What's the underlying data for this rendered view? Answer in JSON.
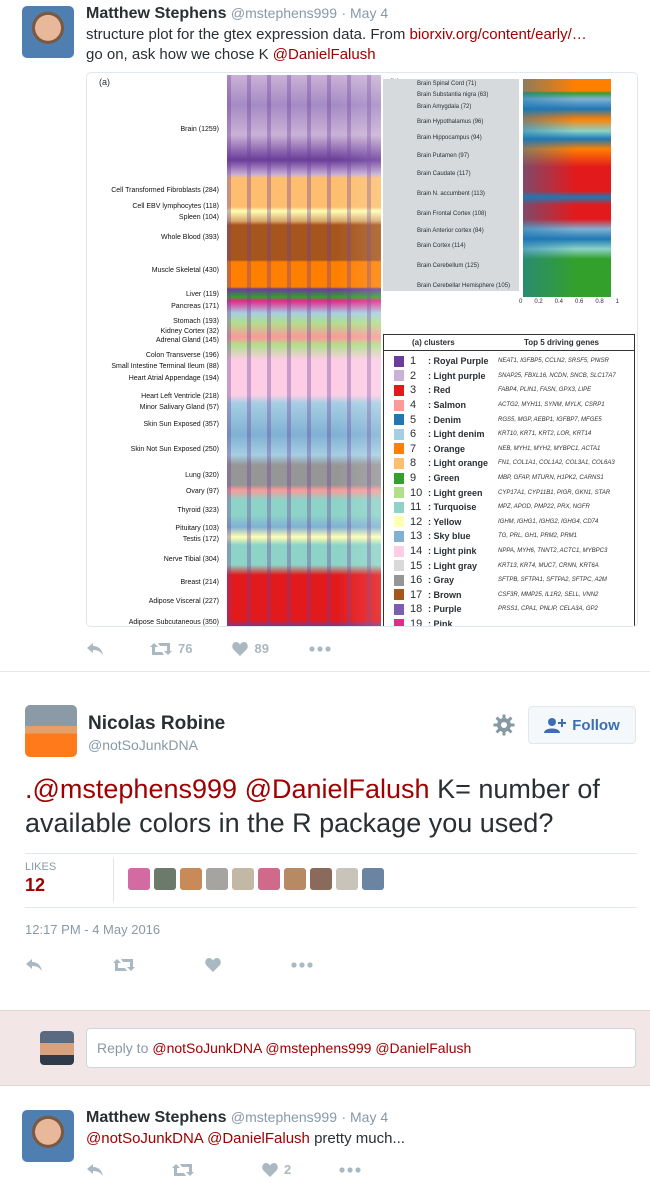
{
  "tweet1": {
    "name": "Matthew Stephens",
    "handle": "@mstephens999",
    "date": "· May 4",
    "text_plain": "structure plot for the gtex expression data. From",
    "link": "biorxiv.org/content/early/…",
    "text_line2": "go on, ask how we chose K",
    "mention": "@DanielFalush",
    "retweets": "76",
    "likes": "89"
  },
  "figure": {
    "panel_a": "(a)",
    "panel_b": "(b)",
    "left_labels": [
      "Brain (1259)",
      "Cell Transformed Fibroblasts (284)",
      "Cell EBV lymphocytes (118)",
      "Spleen (104)",
      "Whole Blood (393)",
      "Muscle Skeletal (430)",
      "Liver (119)",
      "Pancreas (171)",
      "Stomach (193)",
      "Kidney Cortex (32)",
      "Adrenal Gland (145)",
      "Colon Transverse (196)",
      "Small Intestine Terminal Ileum (88)",
      "Heart Atrial Appendage (194)",
      "Heart Left Ventricle (218)",
      "Minor Salivary Gland (57)",
      "Skin Sun Exposed (357)",
      "Skin Not Sun Exposed (250)",
      "Lung (320)",
      "Ovary (97)",
      "Thyroid (323)",
      "Pituitary (103)",
      "Testis (172)",
      "Nerve Tibial (304)",
      "Breast (214)",
      "Adipose Visceral (227)",
      "Adipose Subcutaneous (350)"
    ],
    "right_labels": [
      "Brain Spinal Cord (71)",
      "Brain Substantia nigra (63)",
      "Brain Amygdala (72)",
      "Brain Hypothalamus (96)",
      "Brain Hippocampus (94)",
      "Brain Putamen (97)",
      "Brain Caudate (117)",
      "Brain N. accumbent (113)",
      "Brain Frontal Cortex (108)",
      "Brain Anterior cortex (84)",
      "Brain Cortex (114)",
      "Brain Cerebellum (125)",
      "Brain Cerebellar Hemisphere (105)"
    ],
    "axis_ticks": [
      "0",
      "0.2",
      "0.4",
      "0.6",
      "0.8",
      "1"
    ],
    "table_header_clusters": "(a) clusters",
    "table_header_genes": "Top 5 driving genes",
    "clusters": [
      {
        "num": "1",
        "name": ": Royal Purple",
        "genes": "NEAT1, IGFBP5, CCLN2, SRSF5, PNISR",
        "color": "#6a3d9a"
      },
      {
        "num": "2",
        "name": ": Light purple",
        "genes": "SNAP25, FBXL16, NCDN, SNCB, SLC17A7",
        "color": "#cab2d6"
      },
      {
        "num": "3",
        "name": ": Red",
        "genes": "FABP4, PLIN1, FASN, GPX3, LIPE",
        "color": "#e31a1c"
      },
      {
        "num": "4",
        "name": ": Salmon",
        "genes": "ACTG2, MYH11, SYNM, MYLK, CSRP1",
        "color": "#fb9a99"
      },
      {
        "num": "5",
        "name": ": Denim",
        "genes": "RGS5, MGP, AEBP1, IGFBP7, MFGE5",
        "color": "#1f78b4"
      },
      {
        "num": "6",
        "name": ": Light denim",
        "genes": "KRT10, KRT1, KRT2, LOR, KRT14",
        "color": "#a6cee3"
      },
      {
        "num": "7",
        "name": ": Orange",
        "genes": "NEB, MYH1, MYH2, MYBPC1, ACTA1",
        "color": "#ff7f00"
      },
      {
        "num": "8",
        "name": ": Light orange",
        "genes": "FN1, COL1A1, COL1A2, COL3A1, COL6A3",
        "color": "#fdbf6f"
      },
      {
        "num": "9",
        "name": ": Green",
        "genes": "MBP, GFAP, MTURN, H1PK2, CARNS1",
        "color": "#33a02c"
      },
      {
        "num": "10",
        "name": ": Light green",
        "genes": "CYP17A1, CYP11B1, PIGR, GKN1, STAR",
        "color": "#b2df8a"
      },
      {
        "num": "11",
        "name": ": Turquoise",
        "genes": "MPZ, APOD, PMP22, PRX, NGFR",
        "color": "#8dd3c7"
      },
      {
        "num": "12",
        "name": ": Yellow",
        "genes": "IGHM, IGHG1, IGHG2, IGHG4, CD74",
        "color": "#ffffb3"
      },
      {
        "num": "13",
        "name": ": Sky blue",
        "genes": "TG, PRL, GH1, PRM2, PRM1",
        "color": "#80b1d3"
      },
      {
        "num": "14",
        "name": ": Light pink",
        "genes": "NPPA, MYH6, TNNT2, ACTC1, MYBPC3",
        "color": "#fccde5"
      },
      {
        "num": "15",
        "name": ": Light gray",
        "genes": "KRT13, KRT4, MUC7, CRNN, KRT6A",
        "color": "#d9d9d9"
      },
      {
        "num": "16",
        "name": ": Gray",
        "genes": "SFTPB, SFTPA1, SFTPA2, SFTPC, A2M",
        "color": "#969696"
      },
      {
        "num": "17",
        "name": ": Brown",
        "genes": "CSF3R, MMP25, IL1R2, SELL, VNN2",
        "color": "#a6561c"
      },
      {
        "num": "18",
        "name": ": Purple",
        "genes": "PRSS1, CPA1, PNLIP, CELA3A, GP2",
        "color": "#7b5fad"
      },
      {
        "num": "19",
        "name": ": Pink",
        "genes": "",
        "color": "#e7298a"
      }
    ]
  },
  "tweet2": {
    "name": "Nicolas Robine",
    "handle": "@notSoJunkDNA",
    "follow": "Follow",
    "mention1": ".@mstephens999",
    "mention2": "@DanielFalush",
    "text": "K= number of available colors in the R package you used?",
    "likes_label": "LIKES",
    "likes_count": "12",
    "timestamp": "12:17 PM - 4 May 2016"
  },
  "reply": {
    "prefix": "Reply to",
    "targets": "@notSoJunkDNA @mstephens999 @DanielFalush"
  },
  "tweet3": {
    "name": "Matthew Stephens",
    "handle": "@mstephens999",
    "date": "· May 4",
    "mention1": "@notSoJunkDNA",
    "mention2": "@DanielFalush",
    "text": "pretty much...",
    "likes": "2"
  }
}
